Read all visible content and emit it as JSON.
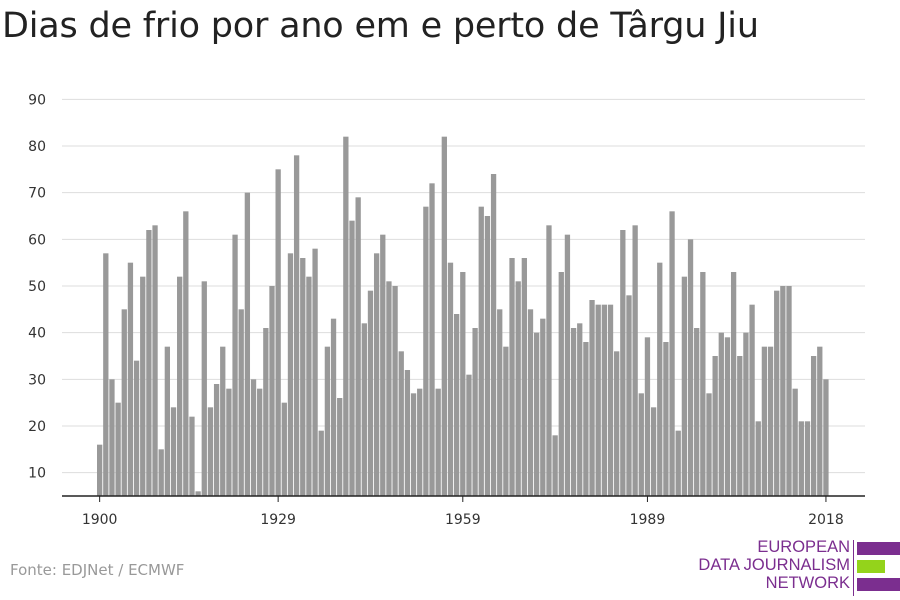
{
  "page": {
    "title": "Dias de frio por ano em e perto de Târgu Jiu",
    "source": "Fonte: EDJNet / ECMWF"
  },
  "logo": {
    "line1": "EUROPEAN",
    "line2": "DATA JOURNALISM",
    "line3": "NETWORK",
    "color_purple": "#7b2e8f",
    "color_green": "#94d31b"
  },
  "chart_data": {
    "type": "bar",
    "title": "Dias de frio por ano em e perto de Târgu Jiu",
    "xlabel": "",
    "ylabel": "",
    "x_start": 1900,
    "x_ticks": [
      1900,
      1929,
      1959,
      1989,
      2018
    ],
    "y_ticks": [
      10,
      20,
      30,
      40,
      50,
      60,
      70,
      80,
      90
    ],
    "ylim": [
      5,
      92
    ],
    "grid": true,
    "bar_color": "#999999",
    "values": [
      16,
      57,
      30,
      25,
      45,
      55,
      34,
      52,
      62,
      63,
      15,
      37,
      24,
      52,
      66,
      22,
      6,
      51,
      24,
      29,
      37,
      28,
      61,
      45,
      70,
      30,
      28,
      41,
      50,
      75,
      25,
      57,
      78,
      56,
      52,
      58,
      19,
      37,
      43,
      26,
      82,
      64,
      69,
      42,
      49,
      57,
      61,
      51,
      50,
      36,
      32,
      27,
      28,
      67,
      72,
      28,
      82,
      55,
      44,
      53,
      31,
      41,
      67,
      65,
      74,
      45,
      37,
      56,
      51,
      56,
      45,
      40,
      43,
      63,
      18,
      53,
      61,
      41,
      42,
      38,
      47,
      46,
      46,
      46,
      36,
      62,
      48,
      63,
      27,
      39,
      24,
      55,
      38,
      66,
      19,
      52,
      60,
      41,
      53,
      27,
      35,
      40,
      39,
      53,
      35,
      40,
      46,
      21,
      37,
      37,
      49,
      50,
      50,
      28,
      21,
      21,
      35,
      37,
      30
    ]
  }
}
